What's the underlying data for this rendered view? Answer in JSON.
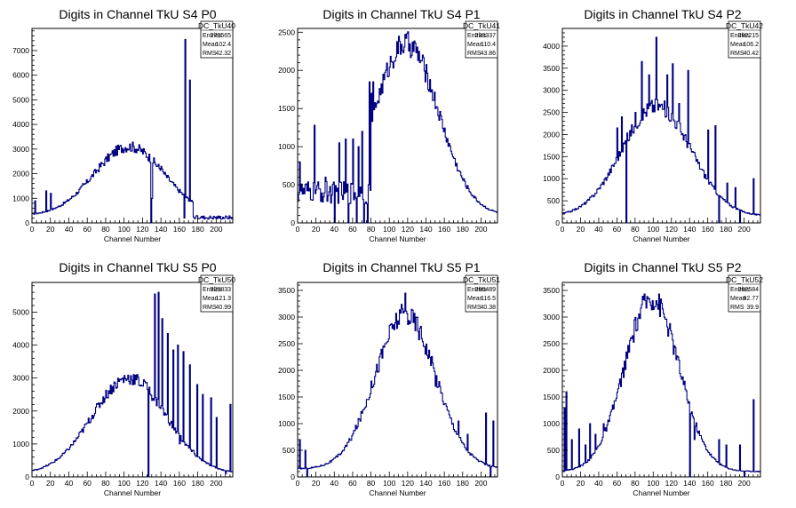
{
  "chart_data": [
    {
      "type": "histogram",
      "title": "Digits in Channel TkU S4 P0",
      "xlabel": "Channel Number",
      "xlim": [
        0,
        218
      ],
      "ylim": [
        0,
        7900
      ],
      "xticks": [
        0,
        20,
        40,
        60,
        80,
        100,
        120,
        140,
        160,
        180,
        200
      ],
      "yticks": [
        1000,
        2000,
        3000,
        4000,
        5000,
        6000,
        7000
      ],
      "color": "#000080",
      "stats": {
        "name": "DC_TkU40",
        "entries": "273565",
        "mean": "102.4",
        "rms": "42.32"
      },
      "profile": {
        "kind": "bump",
        "center": 105,
        "sigma": 38,
        "amp": 2800,
        "base": 300,
        "start": 0,
        "end": 218,
        "tail_start": 175,
        "tail_level": 250
      },
      "spikes": [
        {
          "x": 3,
          "y": 900
        },
        {
          "x": 15,
          "y": 1300
        },
        {
          "x": 20,
          "y": 1200
        },
        {
          "x": 55,
          "y": 1600
        },
        {
          "x": 130,
          "y": 1000
        },
        {
          "x": 140,
          "y": 2300
        },
        {
          "x": 166,
          "y": 7450
        },
        {
          "x": 171,
          "y": 5800
        }
      ],
      "dips": [
        {
          "x": 129,
          "y": 0
        },
        {
          "x": 165,
          "y": 200
        }
      ]
    },
    {
      "type": "histogram",
      "title": "Digits in Channel TkU S4 P1",
      "xlabel": "Channel Number",
      "xlim": [
        0,
        218
      ],
      "ylim": [
        0,
        2550
      ],
      "xticks": [
        0,
        20,
        40,
        60,
        80,
        100,
        120,
        140,
        160,
        180,
        200
      ],
      "yticks": [
        500,
        1000,
        1500,
        2000,
        2500
      ],
      "color": "#000080",
      "stats": {
        "name": "DC_TkU41",
        "entries": "233337",
        "mean": "110.4",
        "rms": "43.86"
      },
      "profile": {
        "kind": "bump",
        "center": 118,
        "sigma": 35,
        "amp": 2250,
        "base": 100,
        "start": 80,
        "end": 218,
        "noise_start": 0,
        "noise_level": 500
      },
      "spikes": [
        {
          "x": 2,
          "y": 800
        },
        {
          "x": 18,
          "y": 1280
        },
        {
          "x": 30,
          "y": 600
        },
        {
          "x": 45,
          "y": 1050
        },
        {
          "x": 52,
          "y": 1100
        },
        {
          "x": 60,
          "y": 1100
        },
        {
          "x": 66,
          "y": 1000
        },
        {
          "x": 70,
          "y": 1200
        },
        {
          "x": 78,
          "y": 1850
        },
        {
          "x": 80,
          "y": 1700
        },
        {
          "x": 82,
          "y": 1850
        }
      ],
      "dips": [
        {
          "x": 40,
          "y": 0
        },
        {
          "x": 55,
          "y": 0
        },
        {
          "x": 64,
          "y": 0
        },
        {
          "x": 72,
          "y": 0
        },
        {
          "x": 76,
          "y": 0
        }
      ]
    },
    {
      "type": "histogram",
      "title": "Digits in Channel TkU S4 P2",
      "xlabel": "Channel Number",
      "xlim": [
        0,
        218
      ],
      "ylim": [
        0,
        4400
      ],
      "xticks": [
        0,
        20,
        40,
        60,
        80,
        100,
        120,
        140,
        160,
        180,
        200
      ],
      "yticks": [
        500,
        1000,
        1500,
        2000,
        2500,
        3000,
        3500,
        4000
      ],
      "color": "#000080",
      "stats": {
        "name": "DC_TkU42",
        "entries": "282215",
        "mean": "106.2",
        "rms": "40.42"
      },
      "profile": {
        "kind": "bump",
        "center": 103,
        "sigma": 38,
        "amp": 2500,
        "base": 150,
        "start": 0,
        "end": 218
      },
      "spikes": [
        {
          "x": 60,
          "y": 2150
        },
        {
          "x": 65,
          "y": 2400
        },
        {
          "x": 80,
          "y": 2500
        },
        {
          "x": 87,
          "y": 3650
        },
        {
          "x": 95,
          "y": 3350
        },
        {
          "x": 103,
          "y": 4200
        },
        {
          "x": 115,
          "y": 3350
        },
        {
          "x": 121,
          "y": 3600
        },
        {
          "x": 128,
          "y": 2700
        },
        {
          "x": 138,
          "y": 3450
        },
        {
          "x": 160,
          "y": 2100
        },
        {
          "x": 168,
          "y": 2200
        },
        {
          "x": 181,
          "y": 900
        },
        {
          "x": 190,
          "y": 800
        },
        {
          "x": 210,
          "y": 1000
        }
      ],
      "dips": [
        {
          "x": 70,
          "y": 0
        },
        {
          "x": 172,
          "y": 0
        },
        {
          "x": 195,
          "y": 0
        }
      ]
    },
    {
      "type": "histogram",
      "title": "Digits in Channel TkU S5 P0",
      "xlabel": "Channel Number",
      "xlim": [
        0,
        218
      ],
      "ylim": [
        0,
        5900
      ],
      "xticks": [
        0,
        20,
        40,
        60,
        80,
        100,
        120,
        140,
        160,
        180,
        200
      ],
      "yticks": [
        1000,
        2000,
        3000,
        4000,
        5000
      ],
      "color": "#000080",
      "stats": {
        "name": "DC_TkU50",
        "entries": "323833",
        "mean": "121.3",
        "rms": "40.99"
      },
      "profile": {
        "kind": "bump",
        "center": 105,
        "sigma": 40,
        "amp": 2900,
        "base": 100,
        "start": 0,
        "end": 218
      },
      "spikes": [
        {
          "x": 122,
          "y": 2900
        },
        {
          "x": 133,
          "y": 5550
        },
        {
          "x": 137,
          "y": 5600
        },
        {
          "x": 141,
          "y": 4800
        },
        {
          "x": 147,
          "y": 4350
        },
        {
          "x": 153,
          "y": 3850
        },
        {
          "x": 158,
          "y": 4000
        },
        {
          "x": 164,
          "y": 3800
        },
        {
          "x": 171,
          "y": 3400
        },
        {
          "x": 179,
          "y": 2800
        },
        {
          "x": 185,
          "y": 2500
        },
        {
          "x": 194,
          "y": 2400
        },
        {
          "x": 200,
          "y": 1800
        },
        {
          "x": 215,
          "y": 2200
        }
      ],
      "dips": [
        {
          "x": 126,
          "y": 0
        },
        {
          "x": 160,
          "y": 1000
        },
        {
          "x": 175,
          "y": 800
        },
        {
          "x": 210,
          "y": 100
        }
      ]
    },
    {
      "type": "histogram",
      "title": "Digits in Channel TkU S5 P1",
      "xlabel": "Channel Number",
      "xlim": [
        0,
        218
      ],
      "ylim": [
        0,
        3650
      ],
      "xticks": [
        0,
        20,
        40,
        60,
        80,
        100,
        120,
        140,
        160,
        180,
        200
      ],
      "yticks": [
        500,
        1000,
        1500,
        2000,
        2500,
        3000,
        3500
      ],
      "color": "#000080",
      "stats": {
        "name": "DC_TkU51",
        "entries": "266489",
        "mean": "116.5",
        "rms": "40.38"
      },
      "profile": {
        "kind": "bump",
        "center": 117,
        "sigma": 33,
        "amp": 2900,
        "base": 150,
        "start": 0,
        "end": 218
      },
      "spikes": [
        {
          "x": 2,
          "y": 700
        },
        {
          "x": 8,
          "y": 500
        },
        {
          "x": 117,
          "y": 3450
        },
        {
          "x": 130,
          "y": 3000
        },
        {
          "x": 150,
          "y": 1700
        },
        {
          "x": 175,
          "y": 1050
        },
        {
          "x": 185,
          "y": 800
        },
        {
          "x": 205,
          "y": 1200
        },
        {
          "x": 213,
          "y": 1050
        }
      ],
      "dips": [
        {
          "x": 10,
          "y": 0
        },
        {
          "x": 210,
          "y": 0
        }
      ]
    },
    {
      "type": "histogram",
      "title": "Digits in Channel TkU S5 P2",
      "xlabel": "Channel Number",
      "xlim": [
        0,
        218
      ],
      "ylim": [
        0,
        3650
      ],
      "xticks": [
        0,
        20,
        40,
        60,
        80,
        100,
        120,
        140,
        160,
        180,
        200
      ],
      "yticks": [
        500,
        1000,
        1500,
        2000,
        2500,
        3000,
        3500
      ],
      "color": "#000080",
      "stats": {
        "name": "DC_TkU52",
        "entries": "262584",
        "mean": "92.77",
        "rms": "39.9"
      },
      "profile": {
        "kind": "bump",
        "center": 98,
        "sigma": 30,
        "amp": 3250,
        "base": 100,
        "start": 0,
        "end": 218
      },
      "spikes": [
        {
          "x": 2,
          "y": 1300
        },
        {
          "x": 4,
          "y": 1600
        },
        {
          "x": 10,
          "y": 700
        },
        {
          "x": 18,
          "y": 900
        },
        {
          "x": 25,
          "y": 600
        },
        {
          "x": 30,
          "y": 1000
        },
        {
          "x": 36,
          "y": 800
        },
        {
          "x": 45,
          "y": 1000
        },
        {
          "x": 145,
          "y": 700
        },
        {
          "x": 172,
          "y": 700
        },
        {
          "x": 180,
          "y": 600
        },
        {
          "x": 195,
          "y": 600
        },
        {
          "x": 210,
          "y": 1450
        }
      ],
      "dips": [
        {
          "x": 140,
          "y": 0
        },
        {
          "x": 200,
          "y": 0
        }
      ]
    }
  ]
}
